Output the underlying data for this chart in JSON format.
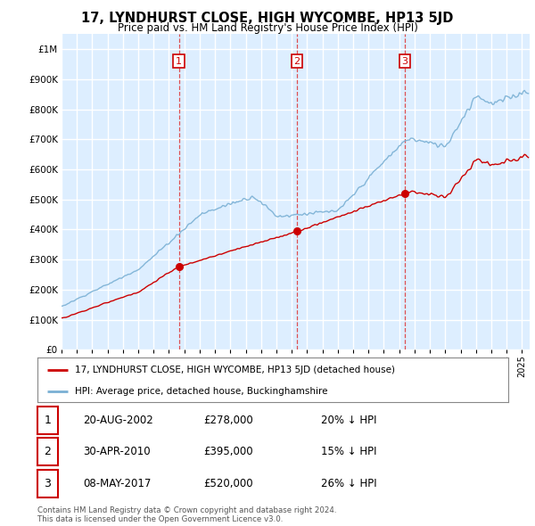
{
  "title": "17, LYNDHURST CLOSE, HIGH WYCOMBE, HP13 5JD",
  "subtitle": "Price paid vs. HM Land Registry's House Price Index (HPI)",
  "hpi_label": "HPI: Average price, detached house, Buckinghamshire",
  "property_label": "17, LYNDHURST CLOSE, HIGH WYCOMBE, HP13 5JD (detached house)",
  "hpi_color": "#7ab0d4",
  "property_color": "#cc0000",
  "background_chart": "#ddeeff",
  "grid_color": "#ffffff",
  "transactions": [
    {
      "num": 1,
      "date": "20-AUG-2002",
      "price": 278000,
      "year": 2002.64,
      "pct": "20% ↓ HPI"
    },
    {
      "num": 2,
      "date": "30-APR-2010",
      "price": 395000,
      "year": 2010.33,
      "pct": "15% ↓ HPI"
    },
    {
      "num": 3,
      "date": "08-MAY-2017",
      "price": 520000,
      "year": 2017.36,
      "pct": "26% ↓ HPI"
    }
  ],
  "footer": "Contains HM Land Registry data © Crown copyright and database right 2024.\nThis data is licensed under the Open Government Licence v3.0.",
  "ylim": [
    0,
    1050000
  ],
  "xlim_start": 1995.0,
  "xlim_end": 2025.5
}
